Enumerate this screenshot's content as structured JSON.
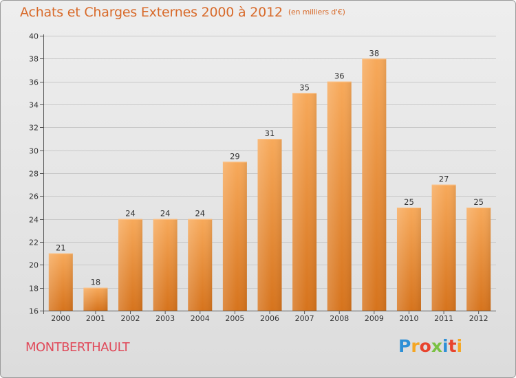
{
  "title": "Achats et Charges Externes 2000 à 2012",
  "subtitle": "(en milliers d'€)",
  "commune": "MONTBERTHAULT",
  "logo": {
    "letters": [
      "P",
      "r",
      "o",
      "x",
      "i",
      "t",
      "i"
    ],
    "colors": [
      "#2d8fd6",
      "#f5a623",
      "#e8442e",
      "#7ac143",
      "#2d8fd6",
      "#e8442e",
      "#f5a623"
    ]
  },
  "colors": {
    "bar_top": "#f7a95a",
    "bar_bottom": "#d6731c",
    "title": "#d86a2a",
    "commune": "#e04a5a",
    "grid": "#c8c8c8"
  },
  "chart_data": {
    "type": "bar",
    "title": "Achats et Charges Externes 2000 à 2012",
    "subtitle": "(en milliers d'€)",
    "categories": [
      "2000",
      "2001",
      "2002",
      "2003",
      "2004",
      "2005",
      "2006",
      "2007",
      "2008",
      "2009",
      "2010",
      "2011",
      "2012"
    ],
    "values": [
      21,
      18,
      24,
      24,
      24,
      29,
      31,
      35,
      36,
      38,
      25,
      27,
      25
    ],
    "yticks": [
      16,
      18,
      20,
      22,
      24,
      26,
      28,
      30,
      32,
      34,
      36,
      38,
      40
    ],
    "ylim": [
      16,
      40
    ],
    "xlabel": "",
    "ylabel": "",
    "grid": true
  }
}
